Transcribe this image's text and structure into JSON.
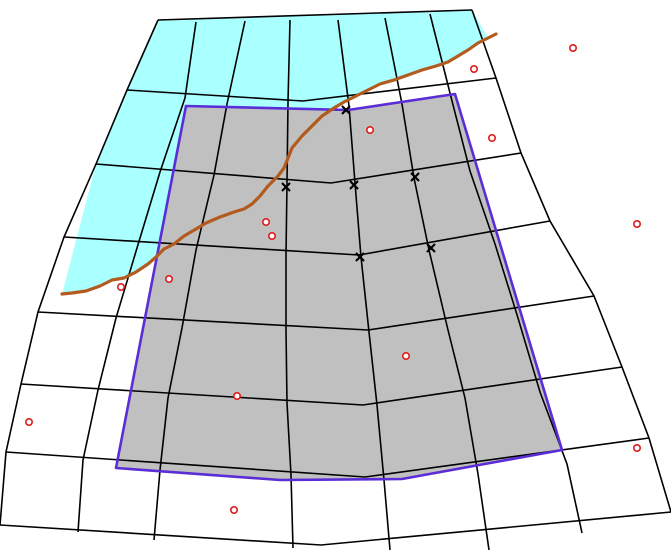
{
  "diagram": {
    "colors": {
      "background": "#ffffff",
      "water": "#aaffff",
      "region_fill": "#c0c0c0",
      "region_outline": "#5a2dd6",
      "grid_lines": "#000000",
      "coastline": "#b35a1f",
      "open_markers": "#e01b1b",
      "cross_markers": "#000000"
    },
    "layers": [
      "water",
      "region-fill",
      "grid",
      "region-outline",
      "coastline",
      "open-circle-markers",
      "cross-markers"
    ]
  }
}
